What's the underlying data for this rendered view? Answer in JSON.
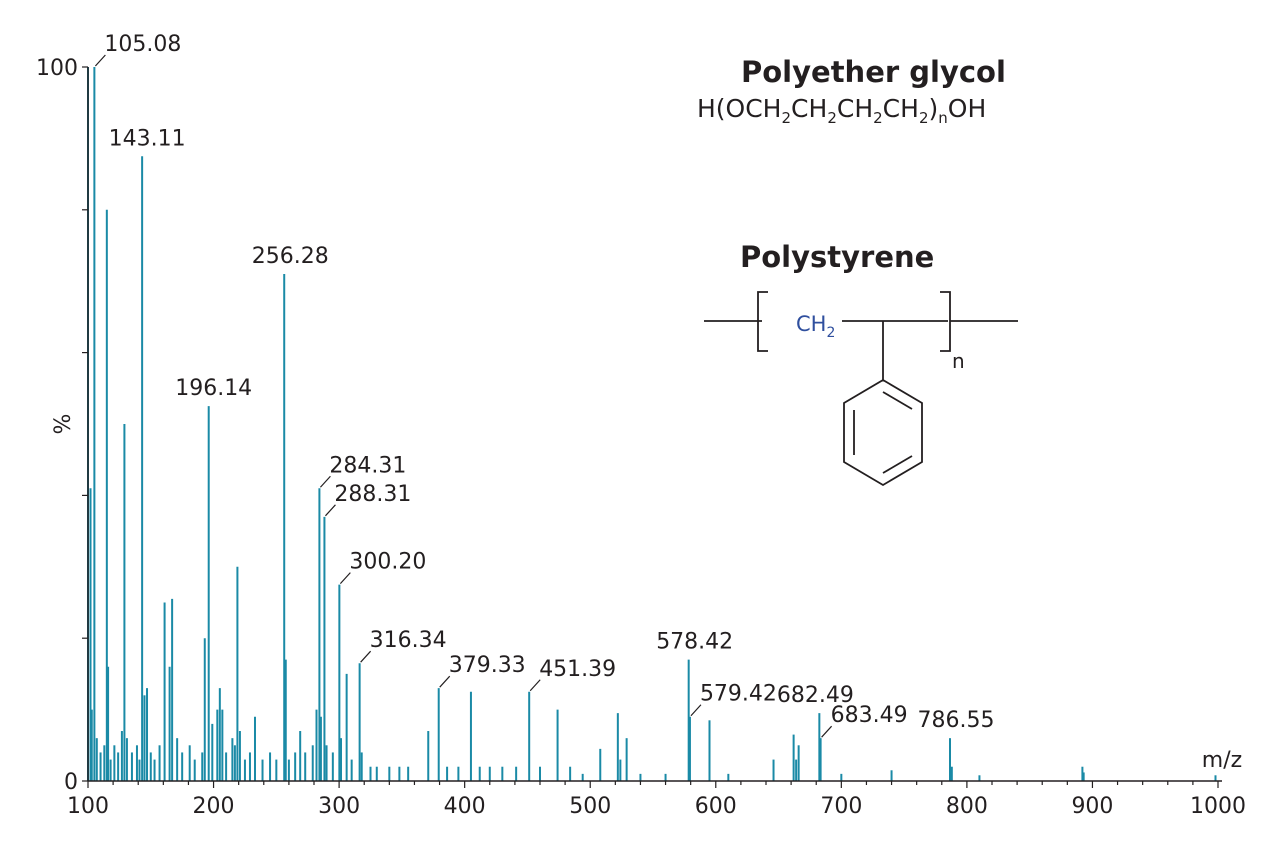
{
  "chart_data": {
    "type": "bar",
    "xlabel": "m/z",
    "ylabel": "%",
    "xlim": [
      100,
      1000
    ],
    "ylim": [
      0,
      100
    ],
    "x_ticks": [
      "100",
      "200",
      "300",
      "400",
      "500",
      "600",
      "700",
      "800",
      "900",
      "1000"
    ],
    "y_ticks": [
      "0",
      "100"
    ],
    "y_mid_label": "%",
    "color": "#1a8aa6",
    "peaks": [
      {
        "mz": 100.0,
        "intensity": 100,
        "label": ""
      },
      {
        "mz": 102.0,
        "intensity": 41,
        "label": ""
      },
      {
        "mz": 103.0,
        "intensity": 10,
        "label": ""
      },
      {
        "mz": 105.08,
        "intensity": 100,
        "label": "105.08"
      },
      {
        "mz": 107.0,
        "intensity": 6,
        "label": ""
      },
      {
        "mz": 110.0,
        "intensity": 4,
        "label": ""
      },
      {
        "mz": 113.0,
        "intensity": 5,
        "label": ""
      },
      {
        "mz": 115.0,
        "intensity": 80,
        "label": ""
      },
      {
        "mz": 116.0,
        "intensity": 16,
        "label": ""
      },
      {
        "mz": 118.0,
        "intensity": 3,
        "label": ""
      },
      {
        "mz": 121.0,
        "intensity": 5,
        "label": ""
      },
      {
        "mz": 124.0,
        "intensity": 4,
        "label": ""
      },
      {
        "mz": 127.0,
        "intensity": 7,
        "label": ""
      },
      {
        "mz": 129.0,
        "intensity": 50,
        "label": ""
      },
      {
        "mz": 131.0,
        "intensity": 6,
        "label": ""
      },
      {
        "mz": 135.0,
        "intensity": 4,
        "label": ""
      },
      {
        "mz": 139.0,
        "intensity": 5,
        "label": ""
      },
      {
        "mz": 141.0,
        "intensity": 3,
        "label": ""
      },
      {
        "mz": 143.11,
        "intensity": 87.5,
        "label": "143.11"
      },
      {
        "mz": 145.0,
        "intensity": 12,
        "label": ""
      },
      {
        "mz": 147.0,
        "intensity": 13,
        "label": ""
      },
      {
        "mz": 150.0,
        "intensity": 4,
        "label": ""
      },
      {
        "mz": 153.0,
        "intensity": 3,
        "label": ""
      },
      {
        "mz": 157.0,
        "intensity": 5,
        "label": ""
      },
      {
        "mz": 161.0,
        "intensity": 25,
        "label": ""
      },
      {
        "mz": 165.0,
        "intensity": 16,
        "label": ""
      },
      {
        "mz": 167.0,
        "intensity": 25.5,
        "label": ""
      },
      {
        "mz": 171.0,
        "intensity": 6,
        "label": ""
      },
      {
        "mz": 175.0,
        "intensity": 4,
        "label": ""
      },
      {
        "mz": 181.0,
        "intensity": 5,
        "label": ""
      },
      {
        "mz": 185.0,
        "intensity": 3,
        "label": ""
      },
      {
        "mz": 191.0,
        "intensity": 4,
        "label": ""
      },
      {
        "mz": 193.0,
        "intensity": 20,
        "label": ""
      },
      {
        "mz": 196.14,
        "intensity": 52.5,
        "label": "196.14"
      },
      {
        "mz": 199.0,
        "intensity": 8,
        "label": ""
      },
      {
        "mz": 203.0,
        "intensity": 10,
        "label": ""
      },
      {
        "mz": 205.0,
        "intensity": 13,
        "label": ""
      },
      {
        "mz": 207.0,
        "intensity": 10,
        "label": ""
      },
      {
        "mz": 210.0,
        "intensity": 4,
        "label": ""
      },
      {
        "mz": 215.0,
        "intensity": 6,
        "label": ""
      },
      {
        "mz": 217.0,
        "intensity": 5,
        "label": ""
      },
      {
        "mz": 219.0,
        "intensity": 30,
        "label": ""
      },
      {
        "mz": 221.0,
        "intensity": 7,
        "label": ""
      },
      {
        "mz": 225.0,
        "intensity": 3,
        "label": ""
      },
      {
        "mz": 229.0,
        "intensity": 4,
        "label": ""
      },
      {
        "mz": 233.0,
        "intensity": 9,
        "label": ""
      },
      {
        "mz": 239.0,
        "intensity": 3,
        "label": ""
      },
      {
        "mz": 245.0,
        "intensity": 4,
        "label": ""
      },
      {
        "mz": 250.0,
        "intensity": 3,
        "label": ""
      },
      {
        "mz": 256.28,
        "intensity": 71,
        "label": "256.28"
      },
      {
        "mz": 257.5,
        "intensity": 17,
        "label": ""
      },
      {
        "mz": 260.0,
        "intensity": 3,
        "label": ""
      },
      {
        "mz": 265.0,
        "intensity": 4,
        "label": ""
      },
      {
        "mz": 269.0,
        "intensity": 7,
        "label": ""
      },
      {
        "mz": 273.0,
        "intensity": 4,
        "label": ""
      },
      {
        "mz": 279.0,
        "intensity": 5,
        "label": ""
      },
      {
        "mz": 282.0,
        "intensity": 10,
        "label": ""
      },
      {
        "mz": 284.31,
        "intensity": 41,
        "label": "284.31"
      },
      {
        "mz": 285.5,
        "intensity": 9,
        "label": ""
      },
      {
        "mz": 288.31,
        "intensity": 37,
        "label": "288.31"
      },
      {
        "mz": 290.0,
        "intensity": 5,
        "label": ""
      },
      {
        "mz": 295.0,
        "intensity": 4,
        "label": ""
      },
      {
        "mz": 300.2,
        "intensity": 27.5,
        "label": "300.20"
      },
      {
        "mz": 301.5,
        "intensity": 6,
        "label": ""
      },
      {
        "mz": 306.0,
        "intensity": 15,
        "label": ""
      },
      {
        "mz": 310.0,
        "intensity": 3,
        "label": ""
      },
      {
        "mz": 316.34,
        "intensity": 16.5,
        "label": "316.34"
      },
      {
        "mz": 318.0,
        "intensity": 4,
        "label": ""
      },
      {
        "mz": 325.0,
        "intensity": 2,
        "label": ""
      },
      {
        "mz": 330.0,
        "intensity": 2,
        "label": ""
      },
      {
        "mz": 340.0,
        "intensity": 2,
        "label": ""
      },
      {
        "mz": 348.0,
        "intensity": 2,
        "label": ""
      },
      {
        "mz": 355.0,
        "intensity": 2,
        "label": ""
      },
      {
        "mz": 371.0,
        "intensity": 7,
        "label": ""
      },
      {
        "mz": 379.33,
        "intensity": 13,
        "label": "379.33"
      },
      {
        "mz": 386.0,
        "intensity": 2,
        "label": ""
      },
      {
        "mz": 395.0,
        "intensity": 2,
        "label": ""
      },
      {
        "mz": 405.0,
        "intensity": 12.5,
        "label": ""
      },
      {
        "mz": 412.0,
        "intensity": 2,
        "label": ""
      },
      {
        "mz": 420.0,
        "intensity": 2,
        "label": ""
      },
      {
        "mz": 430.0,
        "intensity": 2,
        "label": ""
      },
      {
        "mz": 441.0,
        "intensity": 2,
        "label": ""
      },
      {
        "mz": 451.39,
        "intensity": 12.5,
        "label": "451.39"
      },
      {
        "mz": 460.0,
        "intensity": 2,
        "label": ""
      },
      {
        "mz": 474.0,
        "intensity": 10,
        "label": ""
      },
      {
        "mz": 484.0,
        "intensity": 2,
        "label": ""
      },
      {
        "mz": 494.0,
        "intensity": 1,
        "label": ""
      },
      {
        "mz": 508.0,
        "intensity": 4.5,
        "label": ""
      },
      {
        "mz": 522.0,
        "intensity": 9.5,
        "label": ""
      },
      {
        "mz": 524.0,
        "intensity": 3,
        "label": ""
      },
      {
        "mz": 529.0,
        "intensity": 6,
        "label": ""
      },
      {
        "mz": 540.0,
        "intensity": 1,
        "label": ""
      },
      {
        "mz": 560.0,
        "intensity": 1,
        "label": ""
      },
      {
        "mz": 578.42,
        "intensity": 17,
        "label": "578.42"
      },
      {
        "mz": 579.42,
        "intensity": 9,
        "label": "579.42"
      },
      {
        "mz": 595.0,
        "intensity": 8.5,
        "label": ""
      },
      {
        "mz": 610.0,
        "intensity": 1,
        "label": ""
      },
      {
        "mz": 646.0,
        "intensity": 3,
        "label": ""
      },
      {
        "mz": 662.0,
        "intensity": 6.5,
        "label": ""
      },
      {
        "mz": 664.0,
        "intensity": 3,
        "label": ""
      },
      {
        "mz": 666.0,
        "intensity": 5,
        "label": ""
      },
      {
        "mz": 682.49,
        "intensity": 9.5,
        "label": "682.49"
      },
      {
        "mz": 683.49,
        "intensity": 6,
        "label": "683.49"
      },
      {
        "mz": 700.0,
        "intensity": 1,
        "label": ""
      },
      {
        "mz": 740.0,
        "intensity": 1.5,
        "label": ""
      },
      {
        "mz": 786.55,
        "intensity": 6,
        "label": "786.55"
      },
      {
        "mz": 788.0,
        "intensity": 2,
        "label": ""
      },
      {
        "mz": 810.0,
        "intensity": 0.8,
        "label": ""
      },
      {
        "mz": 892.0,
        "intensity": 2,
        "label": ""
      },
      {
        "mz": 893.0,
        "intensity": 1.2,
        "label": ""
      },
      {
        "mz": 998.0,
        "intensity": 0.8,
        "label": ""
      }
    ]
  },
  "annotations": {
    "polyether_title": "Polyether glycol",
    "polyether_formula_parts": [
      "H(OCH",
      "2",
      "CH",
      "2",
      "CH",
      "2",
      "CH",
      "2",
      ")",
      "n",
      "OH"
    ],
    "polystyrene_title": "Polystyrene",
    "polystyrene_ch2": "CH",
    "polystyrene_ch2_sub": "2",
    "polystyrene_n": "n"
  }
}
